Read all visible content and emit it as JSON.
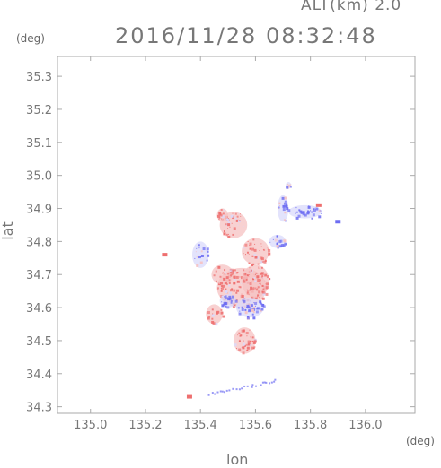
{
  "header": {
    "altitude_label": "ALT(km) 2.0",
    "timestamp": "2016/11/28 08:32:48"
  },
  "chart_data": {
    "type": "heatmap",
    "title": "2016/11/28 08:32:48",
    "subtitle": "ALT(km) 2.0",
    "xlabel": "lon",
    "ylabel": "lat",
    "x_unit": "(deg)",
    "y_unit": "(deg)",
    "xlim": [
      134.88,
      136.18
    ],
    "ylim": [
      34.28,
      35.36
    ],
    "x_ticks": [
      "135.0",
      "135.2",
      "135.4",
      "135.6",
      "135.8",
      "136.0"
    ],
    "y_ticks": [
      "34.3",
      "34.4",
      "34.5",
      "34.6",
      "34.7",
      "34.8",
      "34.9",
      "35.0",
      "35.1",
      "35.2",
      "35.3"
    ],
    "grid": false,
    "colors": {
      "positive": "#ee6f6f",
      "negative": "#6d6df2",
      "light_positive": "#f6c2c2",
      "light_negative": "#d9d9fb"
    },
    "regions": [
      {
        "lon": 135.55,
        "lat": 34.66,
        "rx": 0.09,
        "ry": 0.06,
        "sign": "positive",
        "strength": 0.55
      },
      {
        "lon": 135.48,
        "lat": 34.7,
        "rx": 0.04,
        "ry": 0.03,
        "sign": "positive",
        "strength": 0.45
      },
      {
        "lon": 135.6,
        "lat": 34.68,
        "rx": 0.05,
        "ry": 0.05,
        "sign": "positive",
        "strength": 0.6
      },
      {
        "lon": 135.58,
        "lat": 34.6,
        "rx": 0.05,
        "ry": 0.03,
        "sign": "negative",
        "strength": 0.7
      },
      {
        "lon": 135.5,
        "lat": 34.62,
        "rx": 0.03,
        "ry": 0.02,
        "sign": "negative",
        "strength": 0.6
      },
      {
        "lon": 135.4,
        "lat": 34.76,
        "rx": 0.03,
        "ry": 0.04,
        "sign": "negative",
        "strength": 0.25
      },
      {
        "lon": 135.6,
        "lat": 34.77,
        "rx": 0.05,
        "ry": 0.04,
        "sign": "positive",
        "strength": 0.45
      },
      {
        "lon": 135.68,
        "lat": 34.8,
        "rx": 0.03,
        "ry": 0.02,
        "sign": "negative",
        "strength": 0.6
      },
      {
        "lon": 135.52,
        "lat": 34.85,
        "rx": 0.05,
        "ry": 0.04,
        "sign": "positive",
        "strength": 0.35
      },
      {
        "lon": 135.56,
        "lat": 34.5,
        "rx": 0.04,
        "ry": 0.04,
        "sign": "positive",
        "strength": 0.55
      },
      {
        "lon": 135.78,
        "lat": 34.89,
        "rx": 0.06,
        "ry": 0.02,
        "sign": "negative",
        "strength": 0.5
      },
      {
        "lon": 135.7,
        "lat": 34.9,
        "rx": 0.02,
        "ry": 0.04,
        "sign": "negative",
        "strength": 0.5
      },
      {
        "lon": 135.48,
        "lat": 34.88,
        "rx": 0.02,
        "ry": 0.02,
        "sign": "positive",
        "strength": 0.6
      },
      {
        "lon": 135.72,
        "lat": 34.97,
        "rx": 0.01,
        "ry": 0.01,
        "sign": "negative",
        "strength": 0.6
      },
      {
        "lon": 135.45,
        "lat": 34.58,
        "rx": 0.03,
        "ry": 0.03,
        "sign": "positive",
        "strength": 0.35
      }
    ],
    "points": [
      {
        "lon": 135.36,
        "lat": 34.33,
        "sign": "positive"
      },
      {
        "lon": 135.27,
        "lat": 34.76,
        "sign": "positive"
      },
      {
        "lon": 135.83,
        "lat": 34.91,
        "sign": "positive"
      },
      {
        "lon": 135.9,
        "lat": 34.86,
        "sign": "negative"
      }
    ],
    "streak": {
      "lon_start": 135.43,
      "lat_start": 34.34,
      "lon_end": 135.67,
      "lat_end": 34.38,
      "sign": "negative"
    }
  }
}
